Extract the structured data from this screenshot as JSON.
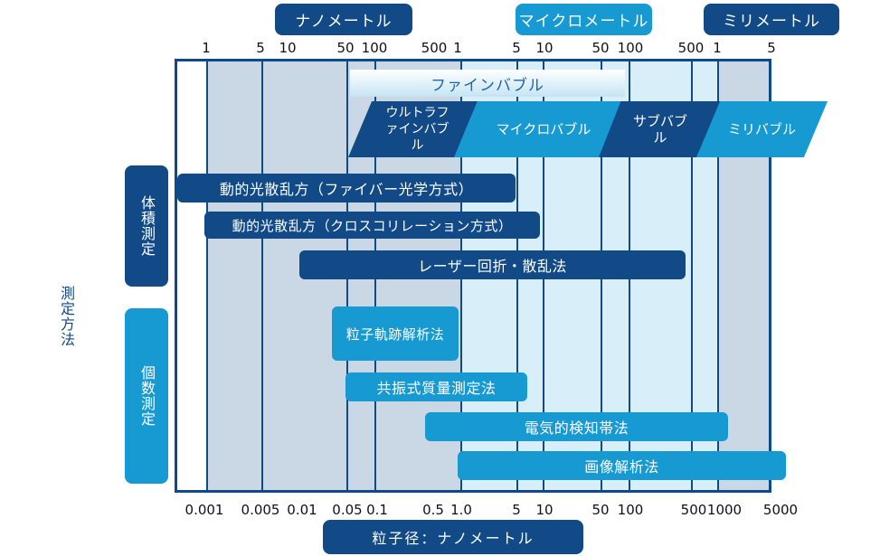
{
  "unit_headers": {
    "nano": "ナノメートル",
    "micro": "マイクロメートル",
    "milli": "ミリメートル"
  },
  "top_ticks": [
    "1",
    "5",
    "10",
    "50",
    "100",
    "500",
    "1",
    "5",
    "10",
    "50",
    "100",
    "500",
    "1",
    "5"
  ],
  "bottom_ticks": [
    "0.001",
    "0.005",
    "0.01",
    "0.05",
    "0.1",
    "0.5",
    "1.0",
    "5",
    "10",
    "50",
    "100",
    "500",
    "1000",
    "5000"
  ],
  "axis_title": "粒子径：ナノメートル",
  "method_label": "測定方法",
  "group_volume": "体積測定",
  "group_count": "個数測定",
  "bubbles": {
    "fine": "ファインバブル",
    "ultrafine": "ウルトラファインバブル",
    "micro": "マイクロバブル",
    "sub": "サブバブル",
    "milli": "ミリバブル"
  },
  "methods": {
    "dls_fiber": "動的光散乱方（ファイバー光学方式）",
    "dls_cross": "動的光散乱方（クロスコリレーション方式）",
    "laser": "レーザー回折・散乱法",
    "tracking": "粒子軌跡解析法",
    "resonant": "共振式質量測定法",
    "electric": "電気的検知帯法",
    "image": "画像解析法"
  },
  "colors": {
    "navy": "#114a86",
    "cyan": "#1799d1",
    "light_blue": "#d8eef8",
    "grey_blue": "#cad8e6",
    "frame": "#0d4a8c"
  }
}
